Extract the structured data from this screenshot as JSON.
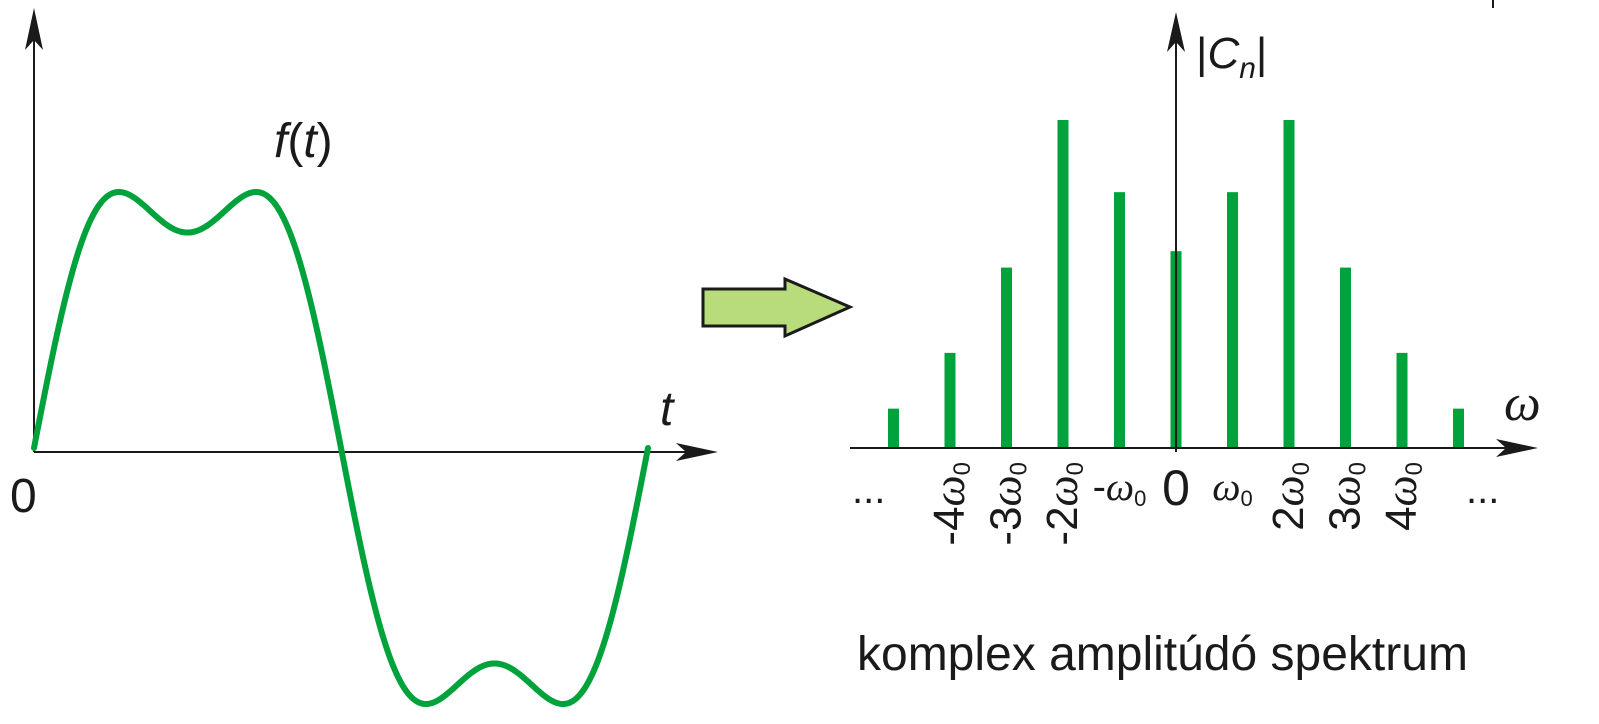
{
  "colors": {
    "signal": "#00a23c",
    "axis": "#1a1a1a",
    "arrow_fill": "#b8dc7c",
    "arrow_stroke": "#1a1a1a"
  },
  "time_plot": {
    "function_label_f": "f",
    "function_label_open": "(",
    "function_label_t": "t",
    "function_label_close": ")",
    "origin_label": "0",
    "axis_label": "t",
    "waveform": "sin(t) + 0.25 sin(3t)"
  },
  "transform_arrow": {
    "icon": "right-arrow-icon"
  },
  "spectrum": {
    "axis_label": "ω",
    "magnitude_bar_left": "|",
    "magnitude_symbol": "C",
    "magnitude_subscript": "n",
    "magnitude_bar_right": "|",
    "ellipsis_left": "...",
    "ellipsis_right": "...",
    "caption": "komplex amplitúdó spektrum",
    "lines": [
      {
        "n": -5,
        "magnitude": 0.12
      },
      {
        "n": -4,
        "magnitude": 0.29
      },
      {
        "n": -3,
        "magnitude": 0.55
      },
      {
        "n": -2,
        "magnitude": 1.0
      },
      {
        "n": -1,
        "magnitude": 0.78
      },
      {
        "n": 0,
        "magnitude": 0.6
      },
      {
        "n": 1,
        "magnitude": 0.78
      },
      {
        "n": 2,
        "magnitude": 1.0
      },
      {
        "n": 3,
        "magnitude": 0.55
      },
      {
        "n": 4,
        "magnitude": 0.29
      },
      {
        "n": 5,
        "magnitude": 0.12
      }
    ],
    "tick_labels": [
      {
        "n": -4,
        "coef": "-4",
        "symbol": "ω",
        "sub": "0"
      },
      {
        "n": -3,
        "coef": "-3",
        "symbol": "ω",
        "sub": "0"
      },
      {
        "n": -2,
        "coef": "-2",
        "symbol": "ω",
        "sub": "0"
      },
      {
        "n": -1,
        "coef": "-",
        "symbol": "ω",
        "sub": "0"
      },
      {
        "n": 0,
        "coef": "0",
        "symbol": "",
        "sub": ""
      },
      {
        "n": 1,
        "coef": "",
        "symbol": "ω",
        "sub": "0"
      },
      {
        "n": 2,
        "coef": "2",
        "symbol": "ω",
        "sub": "0"
      },
      {
        "n": 3,
        "coef": "3",
        "symbol": "ω",
        "sub": "0"
      },
      {
        "n": 4,
        "coef": "4",
        "symbol": "ω",
        "sub": "0"
      }
    ]
  }
}
